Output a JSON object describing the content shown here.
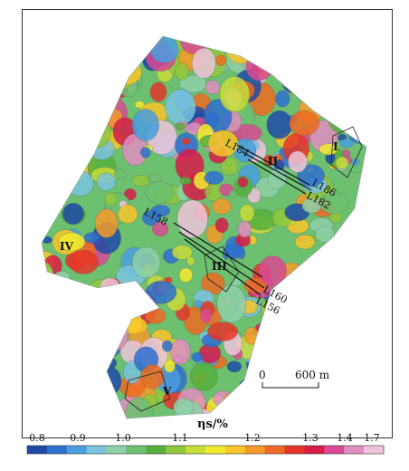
{
  "map": {
    "zones": [
      "I",
      "II",
      "III",
      "IV",
      "V"
    ],
    "lines": {
      "ul": {
        "a": "L184",
        "b": "L186",
        "c": "L182"
      },
      "ll": {
        "a": "L158",
        "b": "L160",
        "c": "L156"
      }
    },
    "scale": {
      "start": "0",
      "end": "600 m"
    }
  },
  "colorbar": {
    "label": "ηs/%",
    "ticks": [
      "0.8",
      "0.9",
      "1.0",
      "1.1",
      "1.2",
      "1.3",
      "1.4",
      "1.7"
    ],
    "colors": [
      "#1f4aa8",
      "#2e6fcf",
      "#4a9ee0",
      "#79c3de",
      "#8fd0a8",
      "#6cc070",
      "#56b03c",
      "#92c83c",
      "#c8dc3a",
      "#f2ec2e",
      "#f8c52a",
      "#f59a2a",
      "#ee6a24",
      "#e5352a",
      "#d81c48",
      "#d94a92",
      "#e08ec0",
      "#efc4dc"
    ]
  }
}
